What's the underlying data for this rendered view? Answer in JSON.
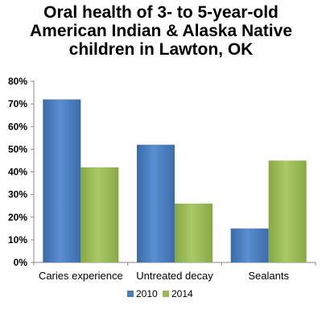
{
  "chart_data": {
    "type": "bar",
    "title_lines": [
      "Oral health of 3- to 5-year-old",
      "American Indian & Alaska Native",
      "children in Lawton, OK"
    ],
    "categories": [
      "Caries experience",
      "Untreated decay",
      "Sealants"
    ],
    "series": [
      {
        "name": "2010",
        "values": [
          72,
          52,
          15
        ],
        "color": "#4a7ebb"
      },
      {
        "name": "2014",
        "values": [
          42,
          26,
          45
        ],
        "color": "#98b954"
      }
    ],
    "yticks": [
      "0%",
      "10%",
      "20%",
      "30%",
      "40%",
      "50%",
      "60%",
      "70%",
      "80%"
    ],
    "ylim": [
      0,
      80
    ],
    "grid": false,
    "legend_position": "bottom",
    "xlabel": "",
    "ylabel": ""
  }
}
